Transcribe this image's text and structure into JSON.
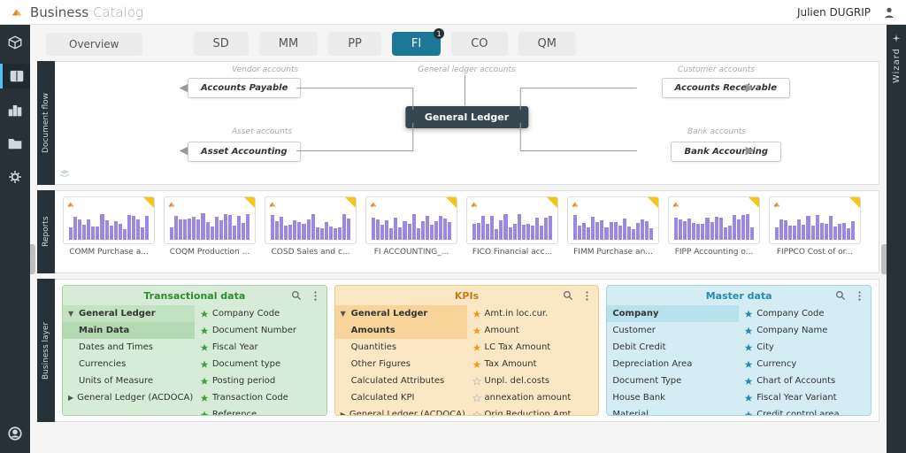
{
  "header": {
    "brand_main": "Business",
    "brand_sub": "Catalog",
    "user": "Julien DUGRIP"
  },
  "rightbar_label": "Wizard",
  "tabs": {
    "overview": "Overview",
    "items": [
      {
        "label": "SD"
      },
      {
        "label": "MM"
      },
      {
        "label": "PP"
      },
      {
        "label": "FI",
        "active": true,
        "badge": "1"
      },
      {
        "label": "CO"
      },
      {
        "label": "QM"
      }
    ]
  },
  "flow": {
    "zone_label": "Document flow",
    "center": "General Ledger",
    "groups": {
      "vendor": "Vendor accounts",
      "gl": "General ledger accounts",
      "customer": "Customer accounts",
      "asset": "Asset accounts",
      "bank": "Bank accounts"
    },
    "boxes": {
      "ap": "Accounts Payable",
      "ar": "Accounts Receivable",
      "asset": "Asset Accounting",
      "bank": "Bank Accounting"
    }
  },
  "reports": {
    "zone_label": "Reports",
    "items": [
      {
        "label": "COMM Purchase a..."
      },
      {
        "label": "COQM Production ..."
      },
      {
        "label": "COSD Sales and c..."
      },
      {
        "label": "FI ACCOUNTING_..."
      },
      {
        "label": "FICO Financial acc..."
      },
      {
        "label": "FIMM Purchase an..."
      },
      {
        "label": "FIPP Accounting o..."
      },
      {
        "label": "FIPPCO Cost of or..."
      }
    ]
  },
  "biz": {
    "zone_label": "Business layer",
    "panels": {
      "transactional": {
        "title": "Transactional data",
        "left": [
          {
            "label": "General Ledger",
            "tri": "down",
            "sel": true
          },
          {
            "label": "Main Data",
            "sel2": true,
            "indent": true
          },
          {
            "label": "Dates and Times",
            "indent": true
          },
          {
            "label": "Currencies",
            "indent": true
          },
          {
            "label": "Units of Measure",
            "indent": true
          },
          {
            "label": "General Ledger (ACDOCA)",
            "tri": "right"
          }
        ],
        "right": [
          {
            "label": "Company Code",
            "star": "g"
          },
          {
            "label": "Document Number",
            "star": "g"
          },
          {
            "label": "Fiscal Year",
            "star": "g"
          },
          {
            "label": "Document type",
            "star": "g"
          },
          {
            "label": "Posting period",
            "star": "g"
          },
          {
            "label": "Transaction Code",
            "star": "g"
          },
          {
            "label": "Reference",
            "star": "g"
          }
        ]
      },
      "kpis": {
        "title": "KPIs",
        "left": [
          {
            "label": "General Ledger",
            "tri": "down",
            "sel": true
          },
          {
            "label": "Amounts",
            "sel": true,
            "indent": true
          },
          {
            "label": "Quantities",
            "indent": true
          },
          {
            "label": "Other Figures",
            "indent": true
          },
          {
            "label": "Calculated Attributes",
            "indent": true
          },
          {
            "label": "Calculated KPI",
            "indent": true
          },
          {
            "label": "General Ledger (ACDOCA)",
            "tri": "right"
          }
        ],
        "right": [
          {
            "label": "Amt.in loc.cur.",
            "star": "o"
          },
          {
            "label": "Amount",
            "star": "o"
          },
          {
            "label": "LC Tax Amount",
            "star": "o"
          },
          {
            "label": "Tax Amount",
            "star": "o"
          },
          {
            "label": "Unpl. del.costs",
            "star": "oe"
          },
          {
            "label": "annexation amount",
            "star": "oe"
          },
          {
            "label": "Orig.Reduction Amt",
            "star": "oe"
          }
        ]
      },
      "master": {
        "title": "Master data",
        "left": [
          {
            "label": "Company",
            "sel": true
          },
          {
            "label": "Customer"
          },
          {
            "label": "Debit Credit"
          },
          {
            "label": "Depreciation Area"
          },
          {
            "label": "Document Type"
          },
          {
            "label": "House Bank"
          },
          {
            "label": "Material"
          }
        ],
        "right": [
          {
            "label": "Company Code",
            "star": "b"
          },
          {
            "label": "Company Name",
            "star": "b"
          },
          {
            "label": "City",
            "star": "b"
          },
          {
            "label": "Currency",
            "star": "b"
          },
          {
            "label": "Chart of Accounts",
            "star": "b"
          },
          {
            "label": "Fiscal Year Variant",
            "star": "b"
          },
          {
            "label": "Credit control area",
            "star": "b"
          }
        ]
      }
    }
  }
}
